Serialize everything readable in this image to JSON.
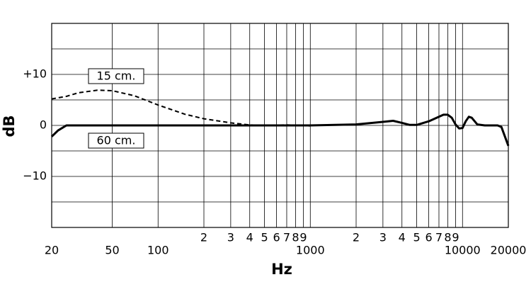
{
  "chart_data": {
    "type": "line",
    "x_label": "Hz",
    "y_label": "dB",
    "xscale": "log",
    "xlim": [
      20,
      20000
    ],
    "ylim": [
      -20,
      20
    ],
    "xticks": [
      20,
      50,
      100,
      {
        "value": 200,
        "label": "2"
      },
      {
        "value": 300,
        "label": "3"
      },
      {
        "value": 400,
        "label": "4"
      },
      {
        "value": 500,
        "label": "5"
      },
      {
        "value": 600,
        "label": "6"
      },
      {
        "value": 700,
        "label": "7"
      },
      {
        "value": 800,
        "label": "8"
      },
      {
        "value": 900,
        "label": "9"
      },
      1000,
      {
        "value": 2000,
        "label": "2"
      },
      {
        "value": 3000,
        "label": "3"
      },
      {
        "value": 4000,
        "label": "4"
      },
      {
        "value": 5000,
        "label": "5"
      },
      {
        "value": 6000,
        "label": "6"
      },
      {
        "value": 7000,
        "label": "7"
      },
      {
        "value": 8000,
        "label": "8"
      },
      {
        "value": 9000,
        "label": "9"
      },
      10000,
      20000
    ],
    "yticks": [
      {
        "value": 10,
        "label": "+10"
      },
      0,
      {
        "value": -10,
        "label": "−10"
      }
    ],
    "ygrid": [
      -15,
      -5,
      5,
      15
    ],
    "grid": true,
    "series": [
      {
        "name": "15 cm.",
        "color": "#000000",
        "dash": true,
        "x": [
          20,
          25,
          30,
          40,
          50,
          70,
          100,
          150,
          200,
          300,
          400,
          500,
          700,
          1000
        ],
        "values": [
          5.2,
          5.7,
          6.4,
          6.9,
          6.8,
          5.8,
          4.0,
          2.2,
          1.3,
          0.5,
          0.1,
          0.0,
          0.1,
          -0.1
        ]
      },
      {
        "name": "60 cm.",
        "color": "#000000",
        "dash": false,
        "x": [
          20,
          22,
          25,
          30,
          100,
          1000,
          2000,
          3000,
          3500,
          4000,
          4500,
          5000,
          6000,
          7000,
          7500,
          8000,
          8500,
          9000,
          9500,
          10000,
          10500,
          11000,
          11500,
          12500,
          14000,
          17000,
          18000,
          20000
        ],
        "values": [
          -2.2,
          -1.0,
          0.0,
          0.0,
          0.0,
          0.0,
          0.2,
          0.7,
          0.9,
          0.5,
          0.1,
          0.1,
          0.8,
          1.7,
          2.1,
          2.1,
          1.5,
          0.2,
          -0.6,
          -0.5,
          0.8,
          1.7,
          1.5,
          0.2,
          0.0,
          0.0,
          -0.3,
          -4.0
        ]
      }
    ]
  }
}
